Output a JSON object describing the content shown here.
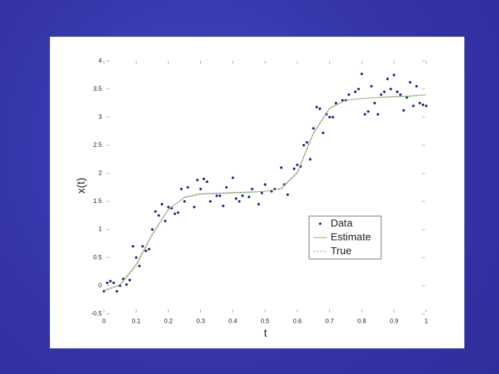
{
  "chart_data": {
    "type": "scatter",
    "xlabel": "t",
    "ylabel": "x(t)",
    "xlim": [
      0,
      1
    ],
    "ylim": [
      -0.5,
      4
    ],
    "xticks": [
      0,
      0.1,
      0.2,
      0.3,
      0.4,
      0.5,
      0.6,
      0.7,
      0.8,
      0.9,
      1
    ],
    "yticks": [
      -0.5,
      0,
      0.5,
      1,
      1.5,
      2,
      2.5,
      3,
      3.5,
      4
    ],
    "legend": "center right",
    "series": [
      {
        "name": "Data",
        "type": "scatter",
        "color": "#1c1c8a",
        "x": [
          0,
          0.01,
          0.02,
          0.03,
          0.04,
          0.05,
          0.06,
          0.07,
          0.08,
          0.09,
          0.1,
          0.11,
          0.12,
          0.13,
          0.14,
          0.15,
          0.16,
          0.17,
          0.18,
          0.19,
          0.2,
          0.21,
          0.22,
          0.23,
          0.24,
          0.25,
          0.26,
          0.28,
          0.29,
          0.3,
          0.31,
          0.32,
          0.33,
          0.35,
          0.36,
          0.37,
          0.38,
          0.4,
          0.41,
          0.42,
          0.43,
          0.45,
          0.46,
          0.48,
          0.49,
          0.5,
          0.52,
          0.53,
          0.55,
          0.56,
          0.57,
          0.59,
          0.6,
          0.61,
          0.62,
          0.63,
          0.64,
          0.65,
          0.66,
          0.67,
          0.68,
          0.69,
          0.7,
          0.71,
          0.72,
          0.74,
          0.75,
          0.76,
          0.78,
          0.79,
          0.8,
          0.81,
          0.82,
          0.83,
          0.84,
          0.85,
          0.86,
          0.87,
          0.88,
          0.89,
          0.9,
          0.91,
          0.92,
          0.93,
          0.94,
          0.95,
          0.96,
          0.97,
          0.98,
          0.99,
          1
        ],
        "values": [
          -0.1,
          0.05,
          0.08,
          0.05,
          -0.1,
          0.0,
          0.12,
          0.02,
          0.1,
          0.7,
          0.5,
          0.35,
          0.7,
          0.62,
          0.65,
          1.0,
          1.32,
          1.25,
          1.45,
          1.15,
          1.4,
          1.38,
          1.28,
          1.3,
          1.72,
          1.5,
          1.75,
          1.4,
          1.88,
          1.72,
          1.9,
          1.85,
          1.5,
          1.6,
          1.6,
          1.42,
          1.75,
          1.92,
          1.55,
          1.5,
          1.6,
          1.58,
          1.72,
          1.45,
          1.65,
          1.8,
          1.68,
          1.72,
          2.1,
          1.8,
          1.62,
          2.08,
          2.15,
          2.12,
          2.5,
          2.55,
          2.25,
          2.8,
          3.18,
          3.15,
          2.72,
          3.05,
          3.0,
          3.0,
          3.25,
          3.3,
          3.3,
          3.4,
          3.45,
          3.5,
          3.77,
          3.05,
          3.1,
          3.55,
          3.25,
          3.05,
          3.4,
          3.45,
          3.68,
          3.5,
          3.75,
          3.45,
          3.4,
          3.12,
          3.35,
          3.62,
          3.2,
          3.55,
          3.25,
          3.22,
          3.2
        ]
      },
      {
        "name": "Estimate",
        "type": "line",
        "color": "#66bb66",
        "dash": false,
        "x": [
          0,
          0.05,
          0.1,
          0.15,
          0.2,
          0.25,
          0.3,
          0.35,
          0.4,
          0.45,
          0.5,
          0.55,
          0.6,
          0.65,
          0.7,
          0.75,
          0.8,
          0.85,
          0.9,
          0.95,
          1
        ],
        "values": [
          -0.08,
          0.02,
          0.38,
          0.92,
          1.36,
          1.57,
          1.63,
          1.64,
          1.65,
          1.66,
          1.68,
          1.73,
          2.02,
          2.72,
          3.16,
          3.3,
          3.33,
          3.35,
          3.36,
          3.37,
          3.4
        ]
      },
      {
        "name": "True",
        "type": "line",
        "color": "#dd8888",
        "dash": true,
        "x": [
          0,
          0.05,
          0.1,
          0.15,
          0.2,
          0.25,
          0.3,
          0.35,
          0.4,
          0.45,
          0.5,
          0.55,
          0.6,
          0.65,
          0.7,
          0.75,
          0.8,
          0.85,
          0.9,
          0.95,
          1
        ],
        "values": [
          -0.1,
          0.0,
          0.35,
          0.9,
          1.35,
          1.58,
          1.64,
          1.65,
          1.66,
          1.67,
          1.68,
          1.72,
          2.0,
          2.7,
          3.15,
          3.3,
          3.33,
          3.35,
          3.37,
          3.38,
          3.4
        ]
      }
    ]
  }
}
